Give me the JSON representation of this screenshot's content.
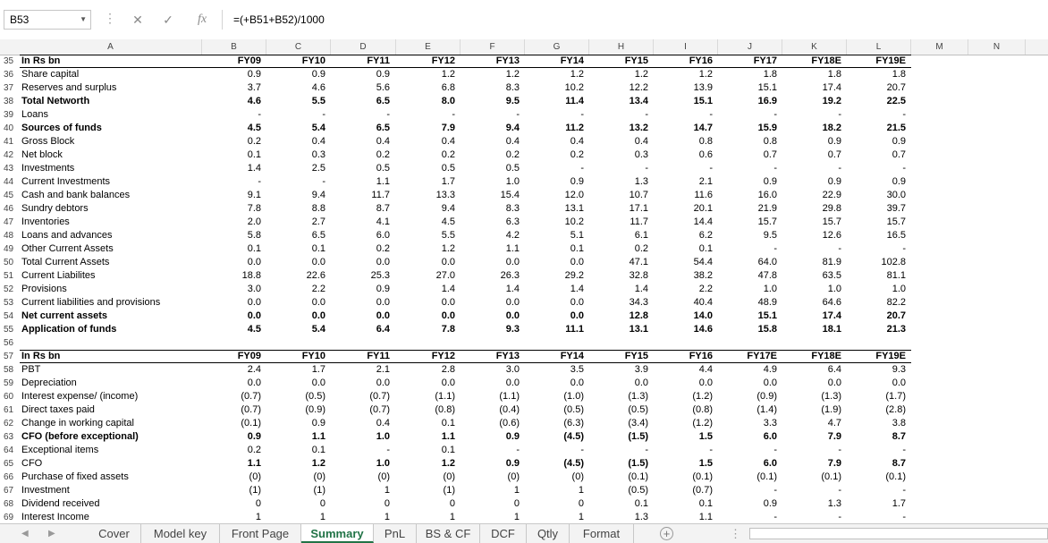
{
  "formula_bar": {
    "cell_ref": "B53",
    "formula": "=(+B51+B52)/1000",
    "fx": "fx"
  },
  "column_headers": [
    "A",
    "B",
    "C",
    "D",
    "E",
    "F",
    "G",
    "H",
    "I",
    "J",
    "K",
    "L",
    "M",
    "N"
  ],
  "rows": [
    {
      "n": "35",
      "label": "In Rs bn",
      "vals": [
        "FY09",
        "FY10",
        "FY11",
        "FY12",
        "FY13",
        "FY14",
        "FY15",
        "FY16",
        "FY17",
        "FY18E",
        "FY19E"
      ],
      "bold": true,
      "header": true
    },
    {
      "n": "36",
      "label": "Share capital",
      "vals": [
        "0.9",
        "0.9",
        "0.9",
        "1.2",
        "1.2",
        "1.2",
        "1.2",
        "1.2",
        "1.8",
        "1.8",
        "1.8"
      ]
    },
    {
      "n": "37",
      "label": "Reserves and surplus",
      "vals": [
        "3.7",
        "4.6",
        "5.6",
        "6.8",
        "8.3",
        "10.2",
        "12.2",
        "13.9",
        "15.1",
        "17.4",
        "20.7"
      ]
    },
    {
      "n": "38",
      "label": "Total Networth",
      "vals": [
        "4.6",
        "5.5",
        "6.5",
        "8.0",
        "9.5",
        "11.4",
        "13.4",
        "15.1",
        "16.9",
        "19.2",
        "22.5"
      ],
      "bold": true
    },
    {
      "n": "39",
      "label": "Loans",
      "vals": [
        "-",
        "-",
        "-",
        "-",
        "-",
        "-",
        "-",
        "-",
        "-",
        "-",
        "-"
      ]
    },
    {
      "n": "40",
      "label": "Sources of funds",
      "vals": [
        "4.5",
        "5.4",
        "6.5",
        "7.9",
        "9.4",
        "11.2",
        "13.2",
        "14.7",
        "15.9",
        "18.2",
        "21.5"
      ],
      "bold": true
    },
    {
      "n": "41",
      "label": "Gross Block",
      "vals": [
        "0.2",
        "0.4",
        "0.4",
        "0.4",
        "0.4",
        "0.4",
        "0.4",
        "0.8",
        "0.8",
        "0.9",
        "0.9"
      ]
    },
    {
      "n": "42",
      "label": "Net block",
      "vals": [
        "0.1",
        "0.3",
        "0.2",
        "0.2",
        "0.2",
        "0.2",
        "0.3",
        "0.6",
        "0.7",
        "0.7",
        "0.7"
      ]
    },
    {
      "n": "43",
      "label": "Investments",
      "vals": [
        "1.4",
        "2.5",
        "0.5",
        "0.5",
        "0.5",
        "-",
        "-",
        "-",
        "-",
        "-",
        "-"
      ]
    },
    {
      "n": "44",
      "label": "Current Investments",
      "vals": [
        "-",
        "-",
        "1.1",
        "1.7",
        "1.0",
        "0.9",
        "1.3",
        "2.1",
        "0.9",
        "0.9",
        "0.9"
      ]
    },
    {
      "n": "45",
      "label": "Cash and bank balances",
      "vals": [
        "9.1",
        "9.4",
        "11.7",
        "13.3",
        "15.4",
        "12.0",
        "10.7",
        "11.6",
        "16.0",
        "22.9",
        "30.0"
      ]
    },
    {
      "n": "46",
      "label": "Sundry debtors",
      "vals": [
        "7.8",
        "8.8",
        "8.7",
        "9.4",
        "8.3",
        "13.1",
        "17.1",
        "20.1",
        "21.9",
        "29.8",
        "39.7"
      ]
    },
    {
      "n": "47",
      "label": "Inventories",
      "vals": [
        "2.0",
        "2.7",
        "4.1",
        "4.5",
        "6.3",
        "10.2",
        "11.7",
        "14.4",
        "15.7",
        "15.7",
        "15.7"
      ]
    },
    {
      "n": "48",
      "label": "Loans and advances",
      "vals": [
        "5.8",
        "6.5",
        "6.0",
        "5.5",
        "4.2",
        "5.1",
        "6.1",
        "6.2",
        "9.5",
        "12.6",
        "16.5"
      ]
    },
    {
      "n": "49",
      "label": "Other Current Assets",
      "vals": [
        "0.1",
        "0.1",
        "0.2",
        "1.2",
        "1.1",
        "0.1",
        "0.2",
        "0.1",
        "-",
        "-",
        "-"
      ]
    },
    {
      "n": "50",
      "label": "Total Current Assets",
      "vals": [
        "0.0",
        "0.0",
        "0.0",
        "0.0",
        "0.0",
        "0.0",
        "47.1",
        "54.4",
        "64.0",
        "81.9",
        "102.8"
      ]
    },
    {
      "n": "51",
      "label": "Current Liabilites",
      "vals": [
        "18.8",
        "22.6",
        "25.3",
        "27.0",
        "26.3",
        "29.2",
        "32.8",
        "38.2",
        "47.8",
        "63.5",
        "81.1"
      ]
    },
    {
      "n": "52",
      "label": "Provisions",
      "vals": [
        "3.0",
        "2.2",
        "0.9",
        "1.4",
        "1.4",
        "1.4",
        "1.4",
        "2.2",
        "1.0",
        "1.0",
        "1.0"
      ]
    },
    {
      "n": "53",
      "label": "Current liabilities and provisions",
      "vals": [
        "0.0",
        "0.0",
        "0.0",
        "0.0",
        "0.0",
        "0.0",
        "34.3",
        "40.4",
        "48.9",
        "64.6",
        "82.2"
      ]
    },
    {
      "n": "54",
      "label": "Net current assets",
      "vals": [
        "0.0",
        "0.0",
        "0.0",
        "0.0",
        "0.0",
        "0.0",
        "12.8",
        "14.0",
        "15.1",
        "17.4",
        "20.7"
      ],
      "bold": true
    },
    {
      "n": "55",
      "label": "Application of funds",
      "vals": [
        "4.5",
        "5.4",
        "6.4",
        "7.8",
        "9.3",
        "11.1",
        "13.1",
        "14.6",
        "15.8",
        "18.1",
        "21.3"
      ],
      "bold": true
    },
    {
      "n": "56",
      "label": "",
      "vals": [
        "",
        "",
        "",
        "",
        "",
        "",
        "",
        "",
        "",
        "",
        ""
      ]
    },
    {
      "n": "57",
      "label": "In Rs bn",
      "vals": [
        "FY09",
        "FY10",
        "FY11",
        "FY12",
        "FY13",
        "FY14",
        "FY15",
        "FY16",
        "FY17E",
        "FY18E",
        "FY19E"
      ],
      "bold": true,
      "header": true
    },
    {
      "n": "58",
      "label": "PBT",
      "vals": [
        "2.4",
        "1.7",
        "2.1",
        "2.8",
        "3.0",
        "3.5",
        "3.9",
        "4.4",
        "4.9",
        "6.4",
        "9.3"
      ]
    },
    {
      "n": "59",
      "label": "Depreciation",
      "vals": [
        "0.0",
        "0.0",
        "0.0",
        "0.0",
        "0.0",
        "0.0",
        "0.0",
        "0.0",
        "0.0",
        "0.0",
        "0.0"
      ]
    },
    {
      "n": "60",
      "label": "Interest expense/ (income)",
      "vals": [
        "(0.7)",
        "(0.5)",
        "(0.7)",
        "(1.1)",
        "(1.1)",
        "(1.0)",
        "(1.3)",
        "(1.2)",
        "(0.9)",
        "(1.3)",
        "(1.7)"
      ]
    },
    {
      "n": "61",
      "label": "Direct taxes paid",
      "vals": [
        "(0.7)",
        "(0.9)",
        "(0.7)",
        "(0.8)",
        "(0.4)",
        "(0.5)",
        "(0.5)",
        "(0.8)",
        "(1.4)",
        "(1.9)",
        "(2.8)"
      ]
    },
    {
      "n": "62",
      "label": "Change in working capital",
      "vals": [
        "(0.1)",
        "0.9",
        "0.4",
        "0.1",
        "(0.6)",
        "(6.3)",
        "(3.4)",
        "(1.2)",
        "3.3",
        "4.7",
        "3.8"
      ]
    },
    {
      "n": "63",
      "label": "CFO (before exceptional)",
      "vals": [
        "0.9",
        "1.1",
        "1.0",
        "1.1",
        "0.9",
        "(4.5)",
        "(1.5)",
        "1.5",
        "6.0",
        "7.9",
        "8.7"
      ],
      "bold": true
    },
    {
      "n": "64",
      "label": "Exceptional items",
      "vals": [
        "0.2",
        "0.1",
        "-",
        "0.1",
        "-",
        "-",
        "-",
        "-",
        "-",
        "-",
        "-"
      ]
    },
    {
      "n": "65",
      "label": "CFO",
      "vals": [
        "1.1",
        "1.2",
        "1.0",
        "1.2",
        "0.9",
        "(4.5)",
        "(1.5)",
        "1.5",
        "6.0",
        "7.9",
        "8.7"
      ],
      "boldvals": true
    },
    {
      "n": "66",
      "label": "Purchase of fixed assets",
      "vals": [
        "(0)",
        "(0)",
        "(0)",
        "(0)",
        "(0)",
        "(0)",
        "(0.1)",
        "(0.1)",
        "(0.1)",
        "(0.1)",
        "(0.1)"
      ]
    },
    {
      "n": "67",
      "label": "Investment",
      "vals": [
        "(1)",
        "(1)",
        "1",
        "(1)",
        "1",
        "1",
        "(0.5)",
        "(0.7)",
        "-",
        "-",
        "-"
      ]
    },
    {
      "n": "68",
      "label": "Dividend received",
      "vals": [
        "0",
        "0",
        "0",
        "0",
        "0",
        "0",
        "0.1",
        "0.1",
        "0.9",
        "1.3",
        "1.7"
      ]
    },
    {
      "n": "69",
      "label": "Interest Income",
      "vals": [
        "1",
        "1",
        "1",
        "1",
        "1",
        "1",
        "1.3",
        "1.1",
        "-",
        "-",
        "-"
      ]
    }
  ],
  "sheet_tabs": [
    "Cover",
    "Model key",
    "Front Page",
    "Summary",
    "PnL",
    "BS & CF",
    "DCF",
    "Qtly",
    "Format"
  ],
  "active_tab": "Summary"
}
